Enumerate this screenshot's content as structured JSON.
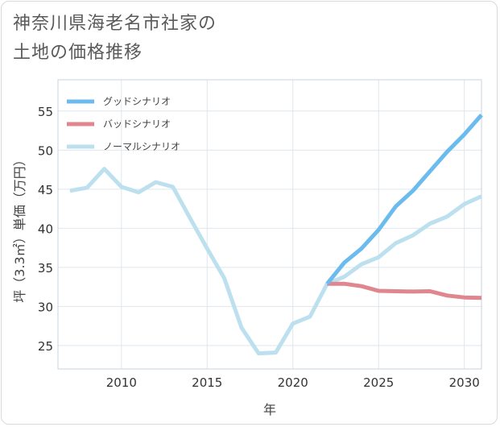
{
  "title_line1": "神奈川県海老名市社家の",
  "title_line2": "土地の価格推移",
  "chart_data": {
    "type": "line",
    "xlabel": "年",
    "ylabel": "坪（3.3㎡）単価（万円）",
    "xlim": [
      2006.3,
      2031
    ],
    "ylim": [
      22,
      59
    ],
    "xticks": [
      2010,
      2015,
      2020,
      2025,
      2030
    ],
    "yticks": [
      25,
      30,
      35,
      40,
      45,
      50,
      55
    ],
    "grid": true,
    "legend_position": "top-left",
    "series": [
      {
        "name": "グッドシナリオ",
        "color": "#6bbbee",
        "points": [
          [
            2022,
            32.9
          ],
          [
            2023,
            35.6
          ],
          [
            2024,
            37.4
          ],
          [
            2025,
            39.8
          ],
          [
            2026,
            42.8
          ],
          [
            2027,
            44.8
          ],
          [
            2028,
            47.3
          ],
          [
            2029,
            49.8
          ],
          [
            2030,
            52.0
          ],
          [
            2031,
            54.5
          ]
        ]
      },
      {
        "name": "バッドシナリオ",
        "color": "#e0868f",
        "points": [
          [
            2022,
            32.9
          ],
          [
            2023,
            32.9
          ],
          [
            2024,
            32.6
          ],
          [
            2025,
            32.0
          ],
          [
            2026,
            31.95
          ],
          [
            2027,
            31.9
          ],
          [
            2028,
            31.95
          ],
          [
            2029,
            31.4
          ],
          [
            2030,
            31.15
          ],
          [
            2031,
            31.1
          ]
        ]
      },
      {
        "name": "ノーマルシナリオ",
        "color": "#bde0ee",
        "points": [
          [
            2007,
            44.8
          ],
          [
            2008,
            45.2
          ],
          [
            2009,
            47.6
          ],
          [
            2010,
            45.3
          ],
          [
            2011,
            44.6
          ],
          [
            2012,
            45.9
          ],
          [
            2013,
            45.3
          ],
          [
            2014,
            41.3
          ],
          [
            2015,
            37.4
          ],
          [
            2016,
            33.6
          ],
          [
            2017,
            27.3
          ],
          [
            2018,
            24.0
          ],
          [
            2019,
            24.1
          ],
          [
            2020,
            27.8
          ],
          [
            2021,
            28.7
          ],
          [
            2022,
            32.9
          ],
          [
            2023,
            33.8
          ],
          [
            2024,
            35.4
          ],
          [
            2025,
            36.3
          ],
          [
            2026,
            38.1
          ],
          [
            2027,
            39.1
          ],
          [
            2028,
            40.6
          ],
          [
            2029,
            41.5
          ],
          [
            2030,
            43.1
          ],
          [
            2031,
            44.1
          ]
        ]
      }
    ]
  }
}
